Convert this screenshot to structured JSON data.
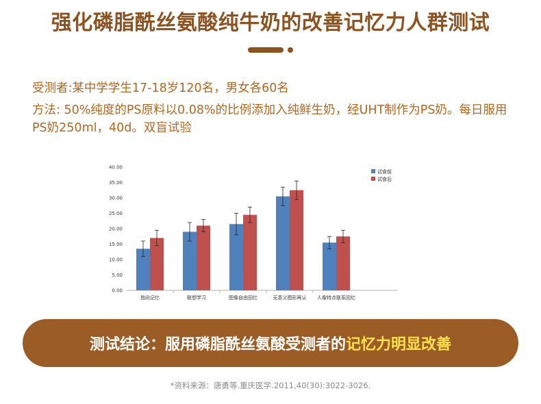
{
  "header": {
    "title": "强化磷脂酰丝氨酸纯牛奶的改善记忆力人群测试"
  },
  "info": {
    "subjects": "受测者:某中学学生17-18岁120名，男女各60名",
    "method": "方法: 50%纯度的PS原料以0.08%的比例添加入纯鲜生奶，经UHT制作为PS奶。每日服用PS奶250ml，40d。双盲试验"
  },
  "chart_data": {
    "type": "bar",
    "title": "",
    "xlabel": "",
    "ylabel": "",
    "categories": [
      "指向记忆",
      "联想学习",
      "图像自由回忆",
      "无意义图形再认",
      "人像特点联系回忆"
    ],
    "series": [
      {
        "name": "试食前",
        "values": [
          13.5,
          19.0,
          21.5,
          30.5,
          15.5
        ],
        "error": [
          2.5,
          3.0,
          3.5,
          3.0,
          2.0
        ],
        "color": "#4f81bd"
      },
      {
        "name": "试食后",
        "values": [
          17.0,
          21.0,
          24.5,
          32.5,
          17.5
        ],
        "error": [
          2.5,
          2.0,
          2.5,
          3.0,
          2.0
        ],
        "color": "#c0504d"
      }
    ],
    "ylim": [
      0,
      40
    ],
    "yticks": [
      "0.00",
      "5.00",
      "10.00",
      "15.00",
      "20.00",
      "25.00",
      "30.00",
      "35.00",
      "40.00"
    ],
    "legend_position": "top-right",
    "grid": false
  },
  "conclusion": {
    "prefix": "测试结论：服用磷脂酰丝氨酸受测者的",
    "highlight": "记忆力明显改善"
  },
  "source": "*资料来源：唐勇等.重庆医学.2011,40(30):3022-3026."
}
